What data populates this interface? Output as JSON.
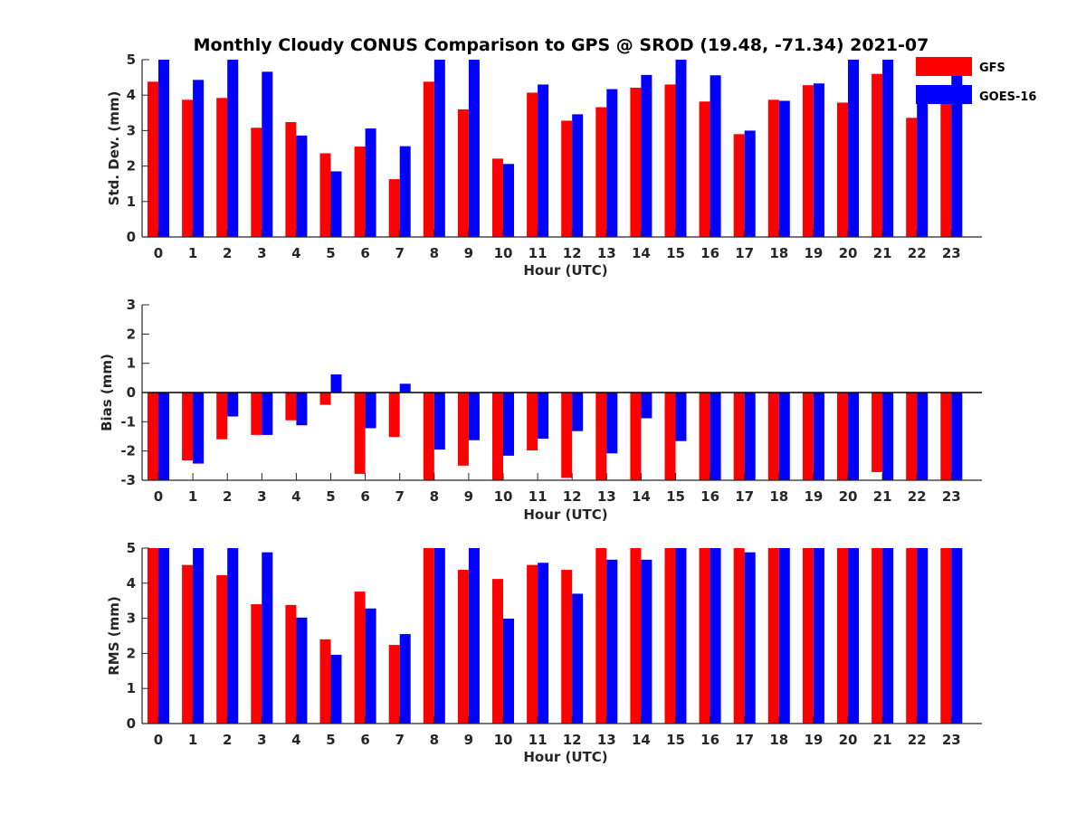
{
  "chart_data": [
    {
      "type": "bar",
      "title": "Monthly Cloudy CONUS Comparison to GPS @ SROD (19.48, -71.34) 2021-07",
      "xlabel": "Hour (UTC)",
      "ylabel": "Std. Dev. (mm)",
      "ylim": [
        0,
        5
      ],
      "yticks": [
        0,
        1,
        2,
        3,
        4,
        5
      ],
      "categories": [
        "0",
        "1",
        "2",
        "3",
        "4",
        "5",
        "6",
        "7",
        "8",
        "9",
        "10",
        "11",
        "12",
        "13",
        "14",
        "15",
        "16",
        "17",
        "18",
        "19",
        "20",
        "21",
        "22",
        "23"
      ],
      "legend_position": "top-right",
      "series": [
        {
          "name": "GFS",
          "color": "#ff0000",
          "values": [
            4.38,
            3.87,
            3.92,
            3.08,
            3.24,
            2.36,
            2.55,
            1.63,
            4.38,
            3.6,
            2.21,
            4.07,
            3.28,
            3.66,
            4.21,
            4.3,
            3.82,
            2.9,
            3.87,
            4.28,
            3.79,
            4.6,
            3.36,
            3.9
          ]
        },
        {
          "name": "GOES-16",
          "color": "#0000ff",
          "values": [
            5.2,
            4.43,
            5.2,
            4.66,
            2.86,
            1.85,
            3.06,
            2.56,
            5.2,
            5.2,
            2.06,
            4.3,
            3.46,
            4.17,
            4.57,
            5.2,
            4.56,
            3.0,
            3.84,
            4.33,
            5.2,
            5.2,
            4.0,
            4.6
          ]
        }
      ]
    },
    {
      "type": "bar",
      "xlabel": "Hour (UTC)",
      "ylabel": "Bias (mm)",
      "ylim": [
        -3,
        3
      ],
      "yticks": [
        -3,
        -2,
        -1,
        0,
        1,
        2,
        3
      ],
      "zero_line": true,
      "categories": [
        "0",
        "1",
        "2",
        "3",
        "4",
        "5",
        "6",
        "7",
        "8",
        "9",
        "10",
        "11",
        "12",
        "13",
        "14",
        "15",
        "16",
        "17",
        "18",
        "19",
        "20",
        "21",
        "22",
        "23"
      ],
      "series": [
        {
          "name": "GFS",
          "color": "#ff0000",
          "values": [
            -3.3,
            -2.32,
            -1.6,
            -1.45,
            -0.95,
            -0.42,
            -2.78,
            -1.52,
            -3.3,
            -2.5,
            -3.3,
            -1.98,
            -2.92,
            -3.3,
            -3.3,
            -3.3,
            -3.3,
            -3.3,
            -3.3,
            -3.3,
            -3.3,
            -2.72,
            -3.3,
            -3.3
          ]
        },
        {
          "name": "GOES-16",
          "color": "#0000ff",
          "values": [
            -3.3,
            -2.43,
            -0.82,
            -1.45,
            -1.12,
            0.62,
            -1.22,
            0.3,
            -1.95,
            -1.63,
            -2.16,
            -1.58,
            -1.32,
            -2.08,
            -0.88,
            -1.66,
            -3.3,
            -3.3,
            -3.3,
            -3.3,
            -3.3,
            -3.3,
            -3.3,
            -3.3
          ]
        }
      ]
    },
    {
      "type": "bar",
      "xlabel": "Hour (UTC)",
      "ylabel": "RMS (mm)",
      "ylim": [
        0,
        5
      ],
      "yticks": [
        0,
        1,
        2,
        3,
        4,
        5
      ],
      "categories": [
        "0",
        "1",
        "2",
        "3",
        "4",
        "5",
        "6",
        "7",
        "8",
        "9",
        "10",
        "11",
        "12",
        "13",
        "14",
        "15",
        "16",
        "17",
        "18",
        "19",
        "20",
        "21",
        "22",
        "23"
      ],
      "series": [
        {
          "name": "GFS",
          "color": "#ff0000",
          "values": [
            5.2,
            4.52,
            4.23,
            3.4,
            3.38,
            2.4,
            3.76,
            2.24,
            5.2,
            4.38,
            4.12,
            4.52,
            4.38,
            5.2,
            5.2,
            5.2,
            5.2,
            5.2,
            5.2,
            5.2,
            5.2,
            5.2,
            5.2,
            5.2
          ]
        },
        {
          "name": "GOES-16",
          "color": "#0000ff",
          "values": [
            5.2,
            5.2,
            5.2,
            4.88,
            3.02,
            1.96,
            3.28,
            2.55,
            5.2,
            5.2,
            2.99,
            4.58,
            3.7,
            4.67,
            4.67,
            5.2,
            5.2,
            4.88,
            5.2,
            5.2,
            5.2,
            5.2,
            5.2,
            5.2
          ]
        }
      ]
    }
  ]
}
